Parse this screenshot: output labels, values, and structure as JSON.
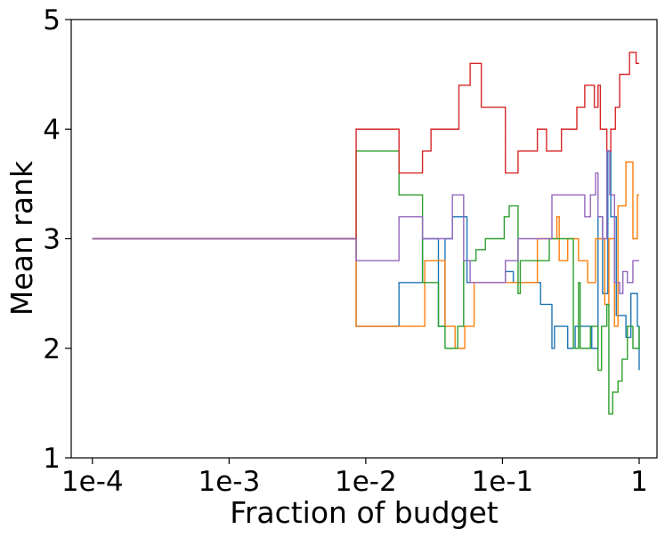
{
  "chart_data": {
    "type": "line",
    "title": "",
    "xlabel": "Fraction of budget",
    "ylabel": "Mean rank",
    "xscale": "log",
    "xlim": [
      7e-05,
      1.35
    ],
    "ylim": [
      1,
      5
    ],
    "xticks": [
      {
        "value": 0.0001,
        "label": "1e-4"
      },
      {
        "value": 0.001,
        "label": "1e-3"
      },
      {
        "value": 0.01,
        "label": "1e-2"
      },
      {
        "value": 0.1,
        "label": "1e-1"
      },
      {
        "value": 1,
        "label": "1"
      }
    ],
    "yticks": [
      {
        "value": 1,
        "label": "1"
      },
      {
        "value": 2,
        "label": "2"
      },
      {
        "value": 3,
        "label": "3"
      },
      {
        "value": 4,
        "label": "4"
      },
      {
        "value": 5,
        "label": "5"
      }
    ],
    "grid": false,
    "legend": "none",
    "series": [
      {
        "name": "series-blue",
        "color": "#1f77b4",
        "points": [
          [
            0.0001,
            3.0
          ],
          [
            0.0085,
            3.0
          ],
          [
            0.0085,
            2.2
          ],
          [
            0.0175,
            2.2
          ],
          [
            0.0175,
            2.6
          ],
          [
            0.026,
            2.6
          ],
          [
            0.026,
            3.0
          ],
          [
            0.034,
            3.0
          ],
          [
            0.034,
            2.2
          ],
          [
            0.038,
            2.2
          ],
          [
            0.038,
            3.0
          ],
          [
            0.043,
            3.0
          ],
          [
            0.043,
            3.2
          ],
          [
            0.055,
            3.2
          ],
          [
            0.055,
            2.6
          ],
          [
            0.105,
            2.6
          ],
          [
            0.105,
            2.7
          ],
          [
            0.12,
            2.7
          ],
          [
            0.12,
            2.6
          ],
          [
            0.19,
            2.6
          ],
          [
            0.19,
            2.4
          ],
          [
            0.23,
            2.4
          ],
          [
            0.23,
            2.0
          ],
          [
            0.24,
            2.0
          ],
          [
            0.24,
            2.2
          ],
          [
            0.3,
            2.2
          ],
          [
            0.3,
            2.0
          ],
          [
            0.34,
            2.0
          ],
          [
            0.34,
            2.2
          ],
          [
            0.45,
            2.2
          ],
          [
            0.45,
            2.0
          ],
          [
            0.5,
            2.0
          ],
          [
            0.5,
            3.2
          ],
          [
            0.54,
            3.2
          ],
          [
            0.54,
            2.5
          ],
          [
            0.59,
            2.5
          ],
          [
            0.59,
            3.8
          ],
          [
            0.62,
            3.8
          ],
          [
            0.62,
            3.2
          ],
          [
            0.68,
            3.2
          ],
          [
            0.68,
            2.3
          ],
          [
            0.8,
            2.3
          ],
          [
            0.8,
            2.1
          ],
          [
            0.87,
            2.1
          ],
          [
            0.87,
            2.5
          ],
          [
            0.97,
            2.5
          ],
          [
            0.97,
            2.2
          ],
          [
            1.0,
            2.2
          ],
          [
            1.0,
            1.8
          ]
        ]
      },
      {
        "name": "series-orange",
        "color": "#ff7f0e",
        "points": [
          [
            0.0001,
            3.0
          ],
          [
            0.0085,
            3.0
          ],
          [
            0.0085,
            2.2
          ],
          [
            0.027,
            2.2
          ],
          [
            0.027,
            2.8
          ],
          [
            0.038,
            2.8
          ],
          [
            0.038,
            2.2
          ],
          [
            0.045,
            2.2
          ],
          [
            0.045,
            2.0
          ],
          [
            0.053,
            2.0
          ],
          [
            0.053,
            2.2
          ],
          [
            0.062,
            2.2
          ],
          [
            0.062,
            2.6
          ],
          [
            0.18,
            2.6
          ],
          [
            0.18,
            3.0
          ],
          [
            0.25,
            3.0
          ],
          [
            0.25,
            3.2
          ],
          [
            0.26,
            3.2
          ],
          [
            0.26,
            2.8
          ],
          [
            0.3,
            2.8
          ],
          [
            0.3,
            3.0
          ],
          [
            0.36,
            3.0
          ],
          [
            0.36,
            2.8
          ],
          [
            0.42,
            2.8
          ],
          [
            0.42,
            2.6
          ],
          [
            0.48,
            2.6
          ],
          [
            0.48,
            3.0
          ],
          [
            0.56,
            3.0
          ],
          [
            0.56,
            2.4
          ],
          [
            0.6,
            2.4
          ],
          [
            0.6,
            3.0
          ],
          [
            0.66,
            3.0
          ],
          [
            0.66,
            2.2
          ],
          [
            0.7,
            2.2
          ],
          [
            0.7,
            3.3
          ],
          [
            0.8,
            3.3
          ],
          [
            0.8,
            3.7
          ],
          [
            0.9,
            3.7
          ],
          [
            0.9,
            3.0
          ],
          [
            0.97,
            3.0
          ],
          [
            0.97,
            3.4
          ],
          [
            1.0,
            3.4
          ]
        ]
      },
      {
        "name": "series-green",
        "color": "#2ca02c",
        "points": [
          [
            0.0001,
            3.0
          ],
          [
            0.0085,
            3.0
          ],
          [
            0.0085,
            3.8
          ],
          [
            0.0175,
            3.8
          ],
          [
            0.0175,
            3.4
          ],
          [
            0.026,
            3.4
          ],
          [
            0.026,
            2.6
          ],
          [
            0.034,
            2.6
          ],
          [
            0.034,
            2.2
          ],
          [
            0.038,
            2.2
          ],
          [
            0.038,
            2.0
          ],
          [
            0.047,
            2.0
          ],
          [
            0.047,
            2.2
          ],
          [
            0.052,
            2.2
          ],
          [
            0.052,
            2.8
          ],
          [
            0.064,
            2.8
          ],
          [
            0.064,
            2.9
          ],
          [
            0.075,
            2.9
          ],
          [
            0.075,
            3.0
          ],
          [
            0.103,
            3.0
          ],
          [
            0.103,
            3.2
          ],
          [
            0.112,
            3.2
          ],
          [
            0.112,
            3.3
          ],
          [
            0.13,
            3.3
          ],
          [
            0.13,
            2.5
          ],
          [
            0.135,
            2.5
          ],
          [
            0.135,
            2.8
          ],
          [
            0.165,
            2.8
          ],
          [
            0.165,
            2.8
          ],
          [
            0.22,
            2.8
          ],
          [
            0.22,
            3.0
          ],
          [
            0.33,
            3.0
          ],
          [
            0.33,
            2.0
          ],
          [
            0.36,
            2.0
          ],
          [
            0.36,
            2.6
          ],
          [
            0.37,
            2.6
          ],
          [
            0.37,
            2.0
          ],
          [
            0.44,
            2.0
          ],
          [
            0.44,
            2.2
          ],
          [
            0.5,
            2.2
          ],
          [
            0.5,
            1.8
          ],
          [
            0.53,
            1.8
          ],
          [
            0.53,
            2.2
          ],
          [
            0.58,
            2.2
          ],
          [
            0.58,
            2.4
          ],
          [
            0.6,
            2.4
          ],
          [
            0.6,
            1.4
          ],
          [
            0.64,
            1.4
          ],
          [
            0.64,
            1.6
          ],
          [
            0.7,
            1.6
          ],
          [
            0.7,
            1.7
          ],
          [
            0.75,
            1.7
          ],
          [
            0.75,
            1.9
          ],
          [
            0.82,
            1.9
          ],
          [
            0.82,
            2.2
          ],
          [
            0.9,
            2.2
          ],
          [
            0.9,
            2.0
          ],
          [
            1.0,
            2.0
          ],
          [
            1.0,
            2.2
          ]
        ]
      },
      {
        "name": "series-red",
        "color": "#d62728",
        "points": [
          [
            0.0001,
            3.0
          ],
          [
            0.0085,
            3.0
          ],
          [
            0.0085,
            4.0
          ],
          [
            0.0175,
            4.0
          ],
          [
            0.0175,
            3.6
          ],
          [
            0.026,
            3.6
          ],
          [
            0.026,
            3.8
          ],
          [
            0.03,
            3.8
          ],
          [
            0.03,
            4.0
          ],
          [
            0.048,
            4.0
          ],
          [
            0.048,
            4.4
          ],
          [
            0.058,
            4.4
          ],
          [
            0.058,
            4.6
          ],
          [
            0.07,
            4.6
          ],
          [
            0.07,
            4.2
          ],
          [
            0.105,
            4.2
          ],
          [
            0.105,
            3.6
          ],
          [
            0.13,
            3.6
          ],
          [
            0.13,
            3.8
          ],
          [
            0.18,
            3.8
          ],
          [
            0.18,
            4.0
          ],
          [
            0.21,
            4.0
          ],
          [
            0.21,
            3.8
          ],
          [
            0.27,
            3.8
          ],
          [
            0.27,
            4.0
          ],
          [
            0.35,
            4.0
          ],
          [
            0.35,
            4.2
          ],
          [
            0.4,
            4.2
          ],
          [
            0.4,
            4.4
          ],
          [
            0.47,
            4.4
          ],
          [
            0.47,
            4.2
          ],
          [
            0.5,
            4.2
          ],
          [
            0.5,
            4.4
          ],
          [
            0.52,
            4.4
          ],
          [
            0.52,
            4.0
          ],
          [
            0.58,
            4.0
          ],
          [
            0.58,
            3.8
          ],
          [
            0.62,
            3.8
          ],
          [
            0.62,
            4.0
          ],
          [
            0.67,
            4.0
          ],
          [
            0.67,
            4.2
          ],
          [
            0.72,
            4.2
          ],
          [
            0.72,
            4.5
          ],
          [
            0.85,
            4.5
          ],
          [
            0.85,
            4.7
          ],
          [
            0.95,
            4.7
          ],
          [
            0.95,
            4.6
          ],
          [
            1.0,
            4.6
          ]
        ]
      },
      {
        "name": "series-purple",
        "color": "#9467bd",
        "points": [
          [
            0.0001,
            3.0
          ],
          [
            0.0085,
            3.0
          ],
          [
            0.0085,
            2.8
          ],
          [
            0.0175,
            2.8
          ],
          [
            0.0175,
            3.2
          ],
          [
            0.026,
            3.2
          ],
          [
            0.026,
            3.0
          ],
          [
            0.043,
            3.0
          ],
          [
            0.043,
            3.4
          ],
          [
            0.052,
            3.4
          ],
          [
            0.052,
            2.8
          ],
          [
            0.058,
            2.8
          ],
          [
            0.058,
            2.6
          ],
          [
            0.105,
            2.6
          ],
          [
            0.105,
            2.8
          ],
          [
            0.13,
            2.8
          ],
          [
            0.13,
            3.0
          ],
          [
            0.23,
            3.0
          ],
          [
            0.23,
            3.4
          ],
          [
            0.4,
            3.4
          ],
          [
            0.4,
            3.2
          ],
          [
            0.44,
            3.2
          ],
          [
            0.44,
            3.4
          ],
          [
            0.48,
            3.4
          ],
          [
            0.48,
            3.6
          ],
          [
            0.5,
            3.6
          ],
          [
            0.5,
            3.2
          ],
          [
            0.54,
            3.2
          ],
          [
            0.54,
            3.0
          ],
          [
            0.58,
            3.0
          ],
          [
            0.58,
            3.8
          ],
          [
            0.61,
            3.8
          ],
          [
            0.61,
            3.4
          ],
          [
            0.66,
            3.4
          ],
          [
            0.66,
            2.6
          ],
          [
            0.72,
            2.6
          ],
          [
            0.72,
            2.5
          ],
          [
            0.76,
            2.5
          ],
          [
            0.76,
            2.7
          ],
          [
            0.82,
            2.7
          ],
          [
            0.82,
            2.6
          ],
          [
            0.9,
            2.6
          ],
          [
            0.9,
            2.8
          ],
          [
            1.0,
            2.8
          ]
        ]
      }
    ]
  }
}
